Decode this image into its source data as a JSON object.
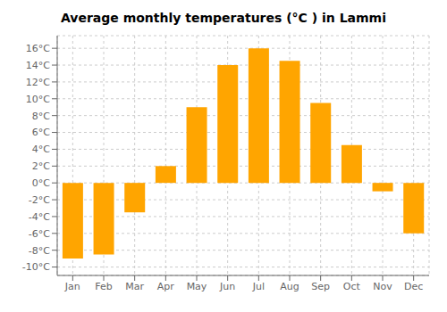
{
  "chart_data": {
    "type": "bar",
    "title": "Average monthly temperatures (°C ) in Lammi",
    "categories": [
      "Jan",
      "Feb",
      "Mar",
      "Apr",
      "May",
      "Jun",
      "Jul",
      "Aug",
      "Sep",
      "Oct",
      "Nov",
      "Dec"
    ],
    "values": [
      -9.0,
      -8.5,
      -3.5,
      2.0,
      9.0,
      14.0,
      16.0,
      14.5,
      9.5,
      4.5,
      -1.0,
      -6.0
    ],
    "color": "#FFA500",
    "ylim": [
      -11,
      17.5
    ],
    "yticks": [
      {
        "value": -10,
        "label": "-10°C"
      },
      {
        "value": -8,
        "label": "-8°C"
      },
      {
        "value": -6,
        "label": "-6°C"
      },
      {
        "value": -4,
        "label": "-4°C"
      },
      {
        "value": -2,
        "label": "-2°C"
      },
      {
        "value": 0,
        "label": "0°C"
      },
      {
        "value": 2,
        "label": "2°C"
      },
      {
        "value": 4,
        "label": "4°C"
      },
      {
        "value": 6,
        "label": "6°C"
      },
      {
        "value": 8,
        "label": "8°C"
      },
      {
        "value": 10,
        "label": "10°C"
      },
      {
        "value": 12,
        "label": "12°C"
      },
      {
        "value": 14,
        "label": "14°C"
      },
      {
        "value": 16,
        "label": "16°C"
      }
    ],
    "grid": true
  }
}
